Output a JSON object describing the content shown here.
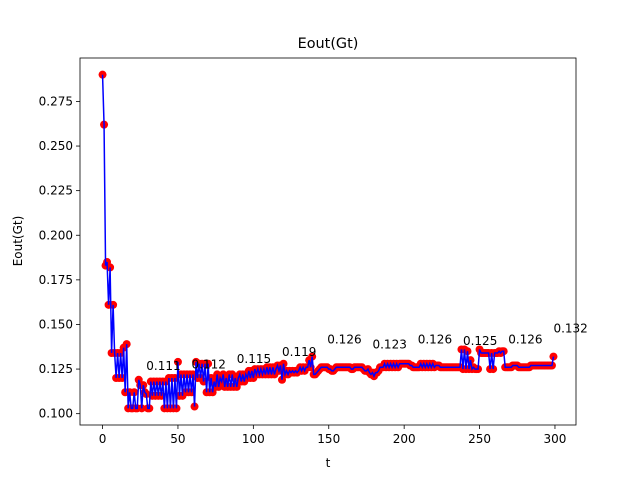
{
  "chart_data": {
    "type": "line",
    "title": "Eout(Gt)",
    "xlabel": "t",
    "ylabel": "Eout(Gt)",
    "line_color": "#0000ff",
    "marker_color": "#ff0000",
    "xlim": [
      -14.95,
      313.95
    ],
    "xticks": [
      0,
      50,
      100,
      150,
      200,
      250,
      300
    ],
    "ylim": [
      0.09365,
      0.29935
    ],
    "yticks": [
      {
        "value": 0.1,
        "label": "0.100"
      },
      0.125,
      {
        "value": 0.15,
        "label": "0.150"
      },
      0.175,
      {
        "value": 0.2,
        "label": "0.200"
      },
      0.225,
      {
        "value": 0.25,
        "label": "0.250"
      },
      0.275
    ],
    "x": [
      0,
      1,
      2,
      3,
      4,
      5,
      6,
      7,
      8,
      9,
      10,
      11,
      12,
      13,
      14,
      15,
      16,
      17,
      18,
      19,
      20,
      21,
      22,
      23,
      24,
      25,
      26,
      27,
      28,
      29,
      30,
      31,
      32,
      33,
      34,
      35,
      36,
      37,
      38,
      39,
      40,
      41,
      42,
      43,
      44,
      45,
      46,
      47,
      48,
      49,
      50,
      51,
      52,
      53,
      54,
      55,
      56,
      57,
      58,
      59,
      60,
      61,
      62,
      63,
      64,
      65,
      66,
      67,
      68,
      69,
      70,
      71,
      72,
      73,
      74,
      75,
      76,
      77,
      78,
      79,
      80,
      81,
      82,
      83,
      84,
      85,
      86,
      87,
      88,
      89,
      90,
      91,
      92,
      93,
      94,
      95,
      96,
      97,
      98,
      99,
      100,
      101,
      102,
      103,
      104,
      105,
      106,
      107,
      108,
      109,
      110,
      111,
      112,
      113,
      114,
      115,
      116,
      117,
      118,
      119,
      120,
      121,
      122,
      123,
      124,
      125,
      126,
      127,
      128,
      129,
      130,
      131,
      132,
      133,
      134,
      135,
      136,
      137,
      138,
      139,
      140,
      141,
      142,
      143,
      144,
      145,
      146,
      147,
      148,
      149,
      150,
      151,
      152,
      153,
      154,
      155,
      156,
      157,
      158,
      159,
      160,
      161,
      162,
      163,
      164,
      165,
      166,
      167,
      168,
      169,
      170,
      171,
      172,
      173,
      174,
      175,
      176,
      177,
      178,
      179,
      180,
      181,
      182,
      183,
      184,
      185,
      186,
      187,
      188,
      189,
      190,
      191,
      192,
      193,
      194,
      195,
      196,
      197,
      198,
      199,
      200,
      201,
      202,
      203,
      204,
      205,
      206,
      207,
      208,
      209,
      210,
      211,
      212,
      213,
      214,
      215,
      216,
      217,
      218,
      219,
      220,
      221,
      222,
      223,
      224,
      225,
      226,
      227,
      228,
      229,
      230,
      231,
      232,
      233,
      234,
      235,
      236,
      237,
      238,
      239,
      240,
      241,
      242,
      243,
      244,
      245,
      246,
      247,
      248,
      249,
      250,
      251,
      252,
      253,
      254,
      255,
      256,
      257,
      258,
      259,
      260,
      261,
      262,
      263,
      264,
      265,
      266,
      267,
      268,
      269,
      270,
      271,
      272,
      273,
      274,
      275,
      276,
      277,
      278,
      279,
      280,
      281,
      282,
      283,
      284,
      285,
      286,
      287,
      288,
      289,
      290,
      291,
      292,
      293,
      294,
      295,
      296,
      297,
      298,
      299
    ],
    "values": [
      0.29,
      0.262,
      0.183,
      0.185,
      0.161,
      0.182,
      0.134,
      0.161,
      0.134,
      0.12,
      0.134,
      0.12,
      0.134,
      0.12,
      0.137,
      0.112,
      0.139,
      0.103,
      0.112,
      0.103,
      0.103,
      0.112,
      0.103,
      0.103,
      0.119,
      0.116,
      0.103,
      0.116,
      0.112,
      0.111,
      0.103,
      0.103,
      0.118,
      0.11,
      0.118,
      0.11,
      0.118,
      0.11,
      0.118,
      0.11,
      0.118,
      0.103,
      0.118,
      0.103,
      0.12,
      0.103,
      0.12,
      0.103,
      0.12,
      0.103,
      0.129,
      0.11,
      0.122,
      0.11,
      0.122,
      0.112,
      0.122,
      0.112,
      0.122,
      0.112,
      0.122,
      0.104,
      0.129,
      0.12,
      0.128,
      0.12,
      0.128,
      0.118,
      0.128,
      0.112,
      0.128,
      0.112,
      0.12,
      0.112,
      0.118,
      0.115,
      0.122,
      0.115,
      0.12,
      0.118,
      0.122,
      0.115,
      0.12,
      0.115,
      0.122,
      0.115,
      0.122,
      0.115,
      0.12,
      0.115,
      0.12,
      0.122,
      0.118,
      0.122,
      0.118,
      0.122,
      0.12,
      0.124,
      0.12,
      0.124,
      0.12,
      0.125,
      0.122,
      0.125,
      0.122,
      0.125,
      0.122,
      0.125,
      0.122,
      0.126,
      0.122,
      0.126,
      0.122,
      0.126,
      0.122,
      0.125,
      0.127,
      0.124,
      0.127,
      0.119,
      0.128,
      0.122,
      0.124,
      0.122,
      0.124,
      0.123,
      0.124,
      0.123,
      0.124,
      0.123,
      0.124,
      0.126,
      0.124,
      0.126,
      0.124,
      0.126,
      0.126,
      0.13,
      0.126,
      0.132,
      0.122,
      0.122,
      0.123,
      0.124,
      0.125,
      0.126,
      0.126,
      0.126,
      0.126,
      0.126,
      0.125,
      0.125,
      0.124,
      0.124,
      0.125,
      0.126,
      0.126,
      0.126,
      0.126,
      0.126,
      0.126,
      0.126,
      0.126,
      0.126,
      0.126,
      0.125,
      0.125,
      0.126,
      0.126,
      0.126,
      0.126,
      0.126,
      0.126,
      0.125,
      0.124,
      0.124,
      0.125,
      0.123,
      0.122,
      0.123,
      0.121,
      0.123,
      0.123,
      0.124,
      0.126,
      0.126,
      0.126,
      0.128,
      0.126,
      0.128,
      0.126,
      0.128,
      0.126,
      0.128,
      0.126,
      0.128,
      0.126,
      0.128,
      0.128,
      0.128,
      0.128,
      0.128,
      0.128,
      0.128,
      0.127,
      0.127,
      0.126,
      0.126,
      0.126,
      0.126,
      0.126,
      0.128,
      0.126,
      0.128,
      0.126,
      0.128,
      0.126,
      0.128,
      0.126,
      0.128,
      0.126,
      0.127,
      0.127,
      0.127,
      0.126,
      0.126,
      0.126,
      0.126,
      0.126,
      0.126,
      0.126,
      0.126,
      0.126,
      0.126,
      0.126,
      0.126,
      0.126,
      0.126,
      0.136,
      0.125,
      0.136,
      0.125,
      0.135,
      0.125,
      0.13,
      0.125,
      0.126,
      0.125,
      0.125,
      0.125,
      0.136,
      0.134,
      0.134,
      0.134,
      0.134,
      0.134,
      0.134,
      0.125,
      0.134,
      0.125,
      0.134,
      0.134,
      0.134,
      0.135,
      0.134,
      0.135,
      0.135,
      0.126,
      0.126,
      0.126,
      0.126,
      0.126,
      0.127,
      0.127,
      0.127,
      0.127,
      0.126,
      0.126,
      0.126,
      0.126,
      0.126,
      0.126,
      0.126,
      0.126,
      0.127,
      0.127,
      0.127,
      0.127,
      0.127,
      0.127,
      0.127,
      0.127,
      0.127,
      0.127,
      0.127,
      0.127,
      0.127,
      0.127,
      0.127,
      0.132
    ],
    "annotations": [
      {
        "x": 29,
        "label": "0.111"
      },
      {
        "x": 59,
        "label": "0.112"
      },
      {
        "x": 89,
        "label": "0.115"
      },
      {
        "x": 119,
        "label": "0.119"
      },
      {
        "x": 149,
        "label": "0.126"
      },
      {
        "x": 179,
        "label": "0.123"
      },
      {
        "x": 209,
        "label": "0.126"
      },
      {
        "x": 239,
        "label": "0.125"
      },
      {
        "x": 269,
        "label": "0.126"
      },
      {
        "x": 299,
        "label": "0.132"
      }
    ]
  }
}
